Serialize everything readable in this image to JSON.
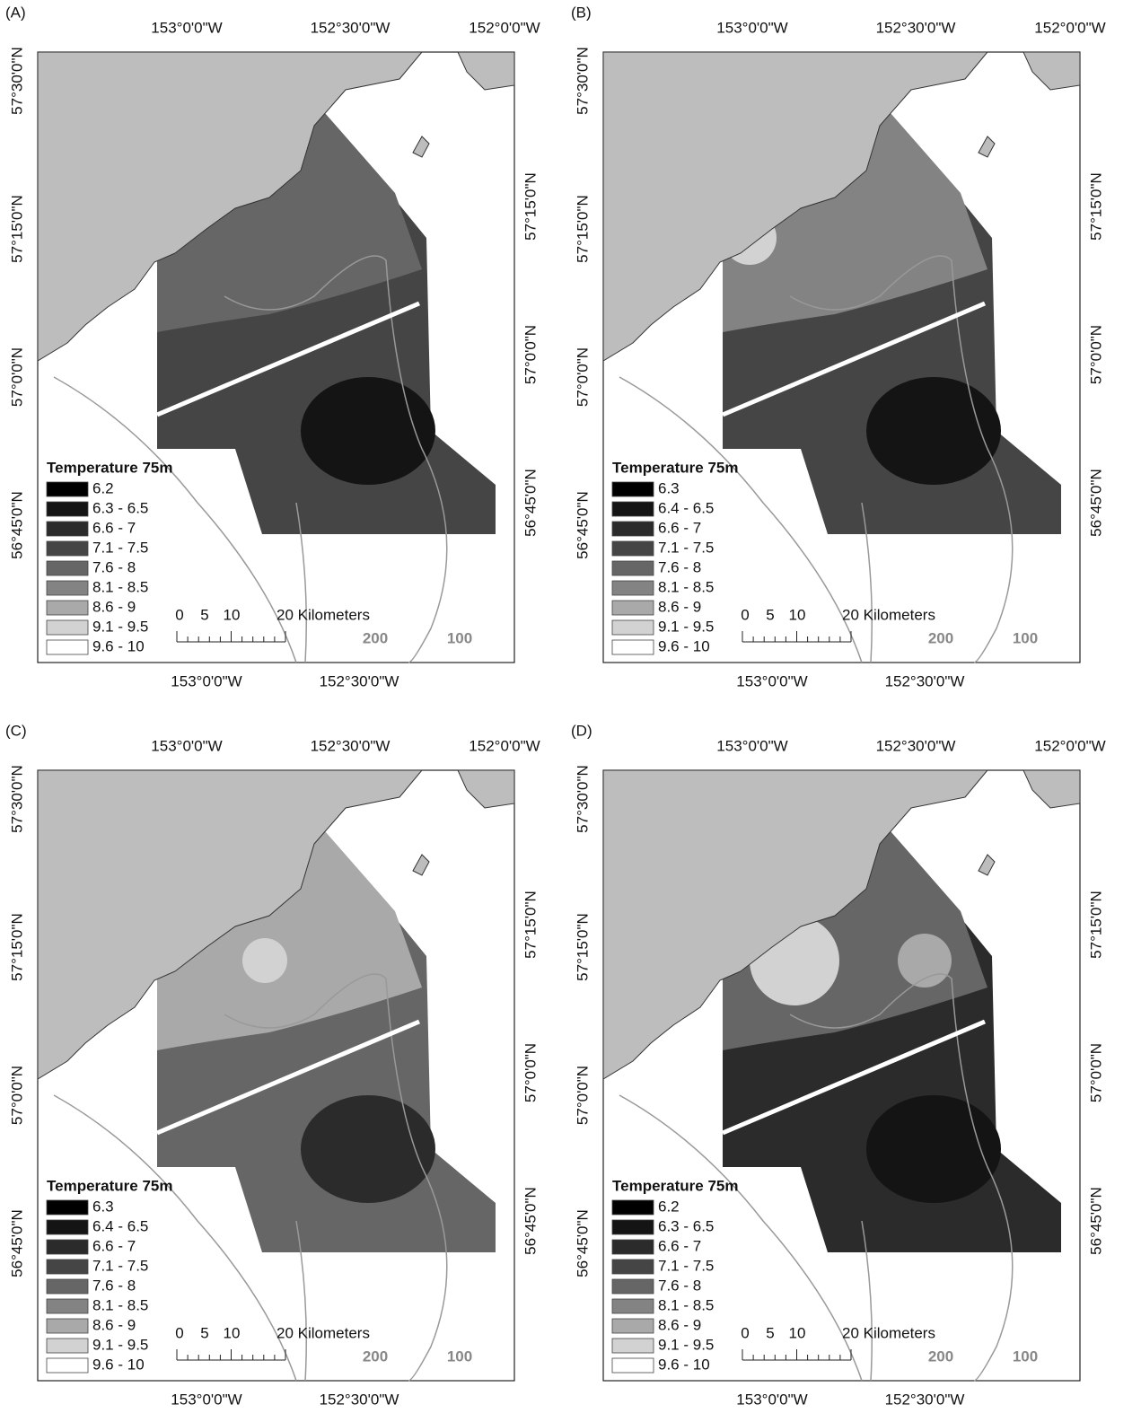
{
  "legend_colors": [
    "#000000",
    "#141414",
    "#2b2b2b",
    "#454545",
    "#666666",
    "#838383",
    "#a9a9a9",
    "#d2d2d2",
    "#ffffff"
  ],
  "panels": [
    {
      "label": "(A)",
      "top_lon_labels": [
        "153°0'0\"W",
        "152°30'0\"W",
        "152°0'0\"W"
      ],
      "bottom_lon_labels": [
        "153°0'0\"W",
        "152°30'0\"W"
      ],
      "left_lat_labels": [
        "57°30'0\"N",
        "57°15'0\"N",
        "57°0'0\"N",
        "56°45'0\"N"
      ],
      "right_lat_labels": [
        "57°15'0\"N",
        "57°0'0\"N",
        "56°45'0\"N"
      ],
      "legend": {
        "title": "Temperature 75m",
        "items": [
          "6.2",
          "6.3 - 6.5",
          "6.6 - 7",
          "7.1 - 7.5",
          "7.6 - 8",
          "8.1 - 8.5",
          "8.6 - 9",
          "9.1 - 9.5",
          "9.6 - 10"
        ]
      },
      "scale_labels": [
        "0",
        "5",
        "10",
        "20 Kilometers"
      ],
      "contour_labels": [
        "200",
        "100"
      ]
    },
    {
      "label": "(B)",
      "top_lon_labels": [
        "153°0'0\"W",
        "152°30'0\"W",
        "152°0'0\"W"
      ],
      "bottom_lon_labels": [
        "153°0'0\"W",
        "152°30'0\"W"
      ],
      "left_lat_labels": [
        "57°30'0\"N",
        "57°15'0\"N",
        "57°0'0\"N",
        "56°45'0\"N"
      ],
      "right_lat_labels": [
        "57°15'0\"N",
        "57°0'0\"N",
        "56°45'0\"N"
      ],
      "legend": {
        "title": "Temperature 75m",
        "items": [
          "6.3",
          "6.4 - 6.5",
          "6.6 - 7",
          "7.1 - 7.5",
          "7.6 - 8",
          "8.1 - 8.5",
          "8.6 - 9",
          "9.1 - 9.5",
          "9.6 - 10"
        ]
      },
      "scale_labels": [
        "0",
        "5",
        "10",
        "20 Kilometers"
      ],
      "contour_labels": [
        "200",
        "100"
      ]
    },
    {
      "label": "(C)",
      "top_lon_labels": [
        "153°0'0\"W",
        "152°30'0\"W",
        "152°0'0\"W"
      ],
      "bottom_lon_labels": [
        "153°0'0\"W",
        "152°30'0\"W"
      ],
      "left_lat_labels": [
        "57°30'0\"N",
        "57°15'0\"N",
        "57°0'0\"N",
        "56°45'0\"N"
      ],
      "right_lat_labels": [
        "57°15'0\"N",
        "57°0'0\"N",
        "56°45'0\"N"
      ],
      "legend": {
        "title": "Temperature 75m",
        "items": [
          "6.3",
          "6.4 - 6.5",
          "6.6 - 7",
          "7.1 - 7.5",
          "7.6 - 8",
          "8.1 - 8.5",
          "8.6 - 9",
          "9.1 - 9.5",
          "9.6 - 10"
        ]
      },
      "scale_labels": [
        "0",
        "5",
        "10",
        "20 Kilometers"
      ],
      "contour_labels": [
        "200",
        "100"
      ]
    },
    {
      "label": "(D)",
      "top_lon_labels": [
        "153°0'0\"W",
        "152°30'0\"W",
        "152°0'0\"W"
      ],
      "bottom_lon_labels": [
        "153°0'0\"W",
        "152°30'0\"W"
      ],
      "left_lat_labels": [
        "57°30'0\"N",
        "57°15'0\"N",
        "57°0'0\"N",
        "56°45'0\"N"
      ],
      "right_lat_labels": [
        "57°15'0\"N",
        "57°0'0\"N",
        "56°45'0\"N"
      ],
      "legend": {
        "title": "Temperature 75m",
        "items": [
          "6.2",
          "6.3 - 6.5",
          "6.6 - 7",
          "7.1 - 7.5",
          "7.6 - 8",
          "8.1 - 8.5",
          "8.6 - 9",
          "9.1 - 9.5",
          "9.6 - 10"
        ]
      },
      "scale_labels": [
        "0",
        "5",
        "10",
        "20 Kilometers"
      ],
      "contour_labels": [
        "200",
        "100"
      ]
    }
  ]
}
